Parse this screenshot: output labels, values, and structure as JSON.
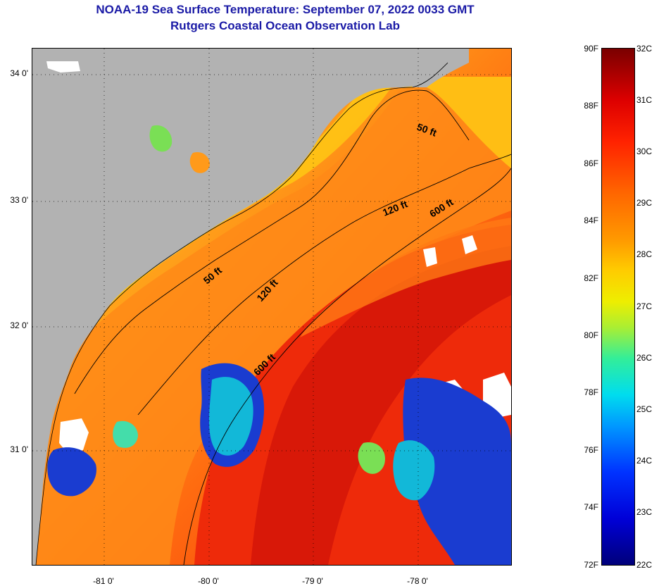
{
  "title_line1": "NOAA-19 Sea Surface Temperature:  September 07, 2022 0033 GMT",
  "title_line2": "Rutgers Coastal Ocean Observation Lab",
  "map": {
    "lat_labels": [
      "34 0'",
      "33 0'",
      "32 0'",
      "31 0'"
    ],
    "lon_labels": [
      "-81 0'",
      "-80 0'",
      "-79 0'",
      "-78 0'"
    ],
    "contour_labels": [
      "50 ft",
      "120 ft",
      "600 ft",
      "50 ft",
      "120 ft",
      "600 ft"
    ],
    "colors": {
      "land": "#b2b2b2",
      "cloud": "#ffffff",
      "nearshore": "#ffcc10",
      "shelf": "#ff9a1a",
      "midshelf": "#ff7a12",
      "offshore": "#ee2a0a",
      "gulfstream": "#cc1008",
      "cool": "#1a3cd0"
    }
  },
  "colorbar": {
    "f_labels": [
      "90F",
      "88F",
      "86F",
      "84F",
      "82F",
      "80F",
      "78F",
      "76F",
      "74F",
      "72F"
    ],
    "c_labels": [
      "32C",
      "31C",
      "30C",
      "29C",
      "28C",
      "27C",
      "26C",
      "25C",
      "24C",
      "23C",
      "22C"
    ]
  }
}
